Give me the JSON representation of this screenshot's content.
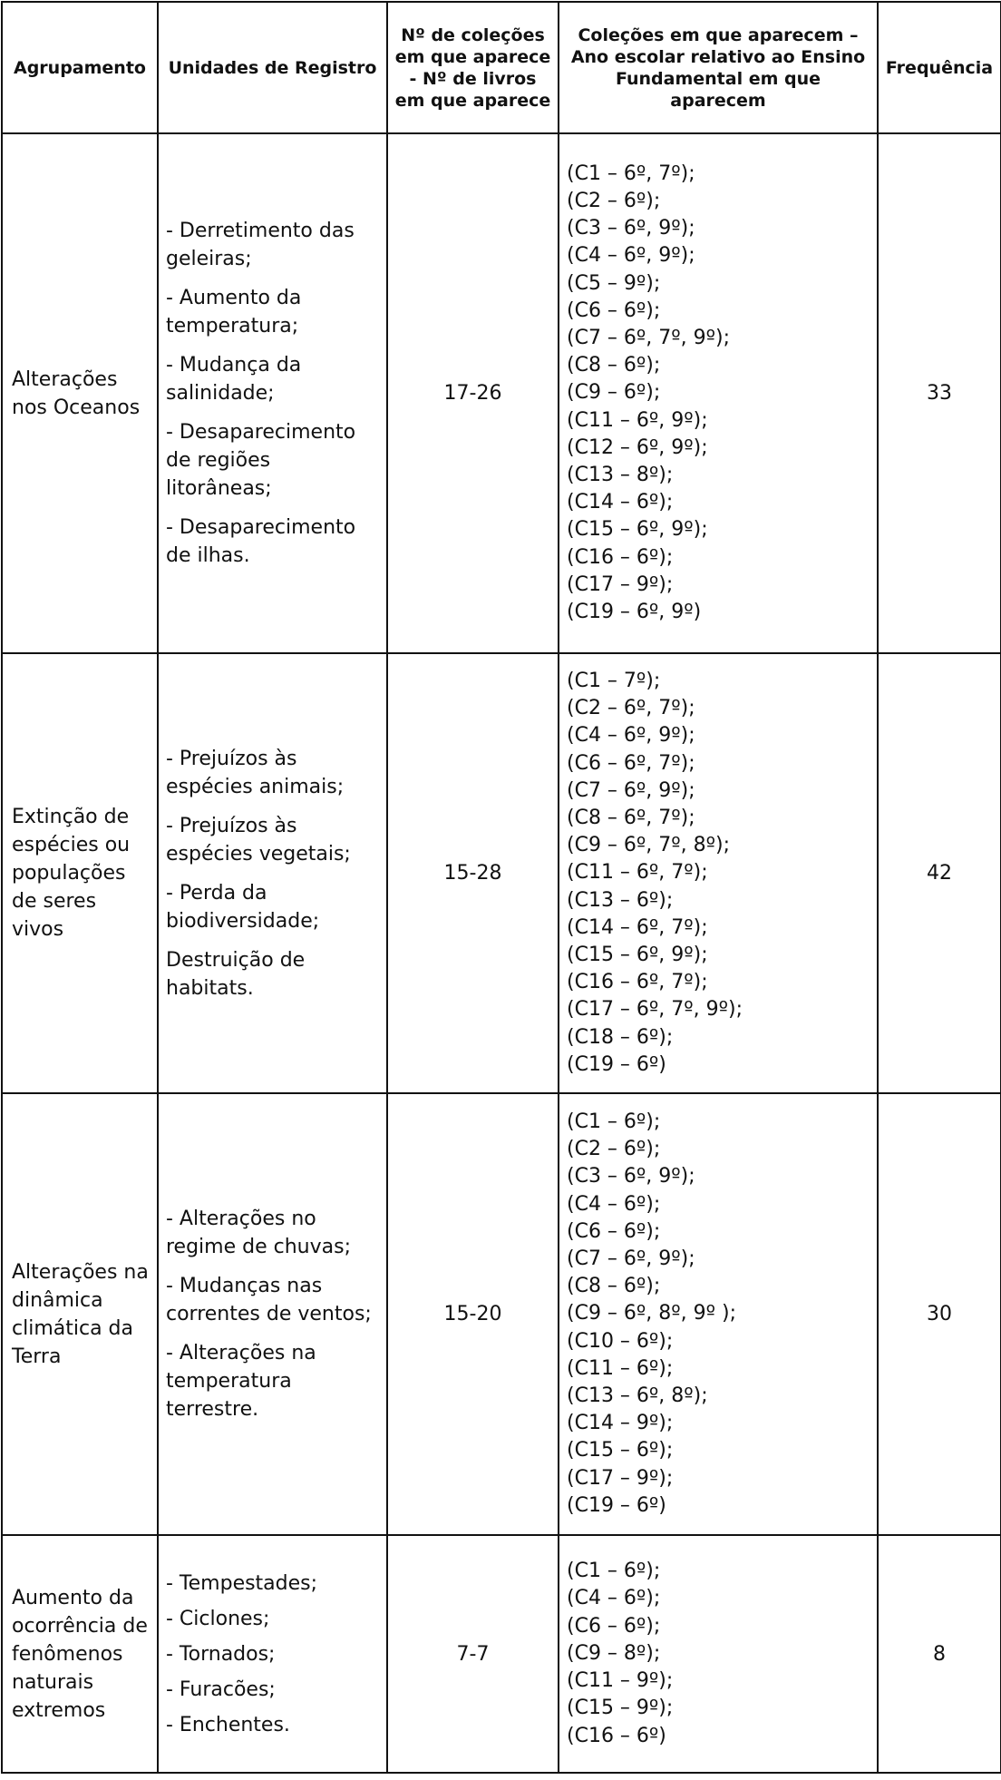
{
  "headers": [
    "Agrupamento",
    "Unidades de Registro",
    "Nº de coleções em que aparece - Nº de livros em que aparece",
    "Coleções em que aparecem – Ano escolar relativo ao Ensino Fundamental em que aparecem",
    "Frequência"
  ],
  "rows": [
    {
      "group": "Alterações nos Oceanos",
      "units": [
        "- Derretimento das geleiras;",
        "- Aumento da temperatura;",
        "- Mudança da salinidade;",
        "- Desaparecimento de regiões litorâneas;",
        "- Desaparecimento de ilhas."
      ],
      "count": "17-26",
      "collections": [
        "(C1 – 6º, 7º);",
        "(C2 – 6º);",
        "(C3 – 6º, 9º);",
        "(C4 – 6º, 9º);",
        "(C5 – 9º);",
        "(C6 – 6º);",
        "(C7 – 6º, 7º, 9º);",
        "(C8 – 6º);",
        "(C9 – 6º);",
        "(C11 – 6º, 9º);",
        "(C12 – 6º, 9º);",
        "(C13 – 8º);",
        "(C14 – 6º);",
        "(C15 – 6º, 9º);",
        "(C16 – 6º);",
        "(C17 – 9º);",
        "(C19 – 6º, 9º)"
      ],
      "frequency": "33"
    },
    {
      "group": "Extinção de espécies ou populações de seres vivos",
      "units": [
        "- Prejuízos às espécies animais;",
        "- Prejuízos às espécies vegetais;",
        "- Perda da biodiversidade;",
        "Destruição de habitats."
      ],
      "count": "15-28",
      "collections": [
        "(C1 – 7º);",
        "(C2 – 6º, 7º);",
        "(C4 – 6º, 9º);",
        "(C6 – 6º, 7º);",
        "(C7 – 6º, 9º);",
        "(C8 – 6º, 7º);",
        "(C9 – 6º, 7º, 8º);",
        "(C11 – 6º, 7º);",
        "(C13 – 6º);",
        "(C14 – 6º, 7º);",
        "(C15 – 6º, 9º);",
        "(C16 – 6º, 7º);",
        "(C17 – 6º, 7º, 9º);",
        "(C18 – 6º);",
        "(C19 – 6º)"
      ],
      "frequency": "42"
    },
    {
      "group": "Alterações na dinâmica climática da Terra",
      "units": [
        "- Alterações no regime de chuvas;",
        "- Mudanças nas correntes de ventos;",
        "- Alterações na temperatura terrestre."
      ],
      "count": "15-20",
      "collections": [
        "(C1 – 6º);",
        "(C2 – 6º);",
        "(C3 – 6º, 9º);",
        "(C4 – 6º);",
        "(C6 – 6º);",
        "(C7 – 6º, 9º);",
        "(C8 – 6º);",
        "(C9 – 6º, 8º, 9º );",
        "(C10 – 6º);",
        "(C11 – 6º);",
        "(C13 – 6º, 8º);",
        "(C14 – 9º);",
        "(C15 – 6º);",
        "(C17 – 9º);",
        "(C19 – 6º)"
      ],
      "frequency": "30"
    },
    {
      "group": "Aumento da ocorrência de fenômenos naturais extremos",
      "units": [
        "- Tempestades;",
        "- Ciclones;",
        "- Tornados;",
        "- Furacões;",
        "- Enchentes."
      ],
      "count": "7-7",
      "collections": [
        "(C1 – 6º);",
        "(C4 – 6º);",
        "(C6 – 6º);",
        "(C9 – 8º);",
        "(C11 – 9º);",
        "(C15 – 9º);",
        "(C16 – 6º)"
      ],
      "frequency": "8"
    }
  ]
}
